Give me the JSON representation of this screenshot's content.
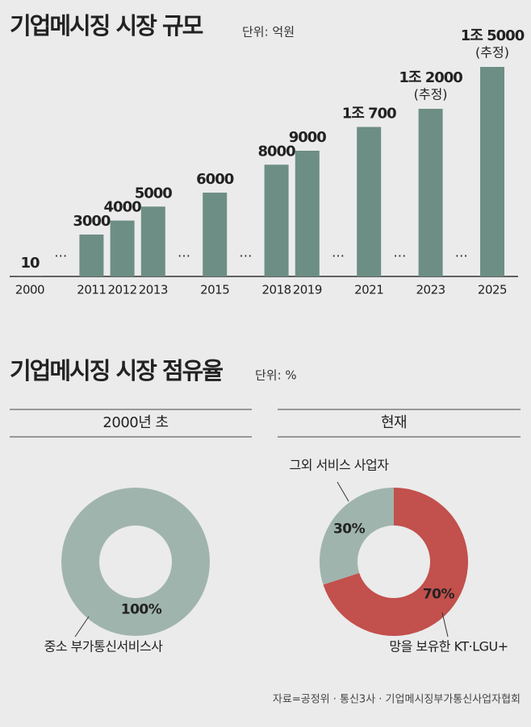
{
  "chart_data": [
    {
      "type": "bar",
      "title": "기업메시징 시장 규모",
      "unit": "단위: 억원",
      "categories": [
        "2000",
        null,
        "2011",
        "2012",
        "2013",
        null,
        "2015",
        null,
        "2018",
        "2019",
        null,
        "2021",
        null,
        "2023",
        null,
        "2025"
      ],
      "values": [
        10,
        null,
        3000,
        4000,
        5000,
        null,
        6000,
        null,
        8000,
        9000,
        null,
        10700,
        null,
        12000,
        null,
        15000
      ],
      "value_labels": [
        "10",
        null,
        "3000",
        "4000",
        "5000",
        null,
        "6000",
        null,
        "8000",
        "9000",
        null,
        "1조 700",
        null,
        "1조 2000",
        null,
        "1조 5000"
      ],
      "value_notes": [
        null,
        null,
        null,
        null,
        null,
        null,
        null,
        null,
        null,
        null,
        null,
        null,
        null,
        "(추정)",
        null,
        "(추정)"
      ],
      "gap_label": "…",
      "color": "#6d8e85"
    },
    {
      "type": "donut",
      "title": "기업메시징 시장 점유율",
      "unit": "단위: %",
      "subtitle": "2000년 초",
      "categories": [
        "중소 부가통신서비스사"
      ],
      "values": [
        100
      ],
      "value_labels": [
        "100%"
      ],
      "colors": [
        "#a0b4ae"
      ]
    },
    {
      "type": "donut",
      "subtitle": "현재",
      "categories": [
        "망을 보유한 KT·LGU+",
        "그외 서비스 사업자"
      ],
      "values": [
        70,
        30
      ],
      "value_labels": [
        "70%",
        "30%"
      ],
      "colors": [
        "#c2504c",
        "#a0b4ae"
      ]
    }
  ],
  "source": "자료=공정위 · 통신3사 · 기업메시징부가통신사업자협회"
}
